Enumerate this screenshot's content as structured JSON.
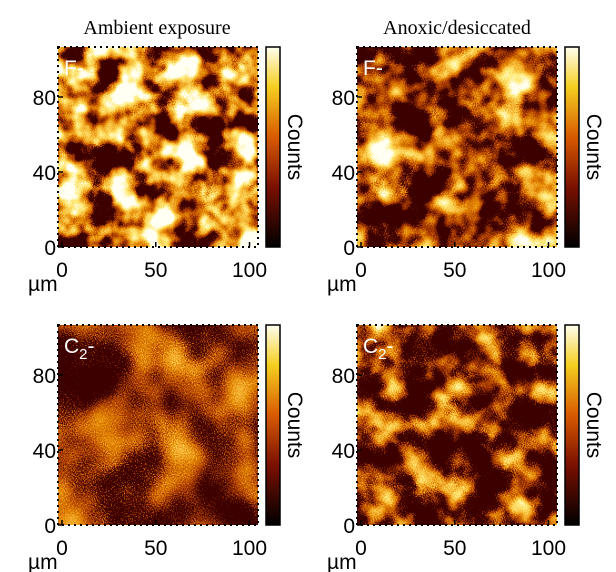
{
  "columns": [
    "Ambient exposure",
    "Anoxic/desiccated"
  ],
  "panels": [
    {
      "label": "F-"
    },
    {
      "label": "F-"
    },
    {
      "label": {
        "main": "C",
        "sub": "2",
        "suffix": "-"
      }
    },
    {
      "label": {
        "main": "C",
        "sub": "2",
        "suffix": "-"
      }
    }
  ],
  "x_ticks": [
    "0",
    "50",
    "100"
  ],
  "y_ticks": [
    "0",
    "40",
    "80"
  ],
  "unit": "µm",
  "colorbar_label": "Counts"
}
